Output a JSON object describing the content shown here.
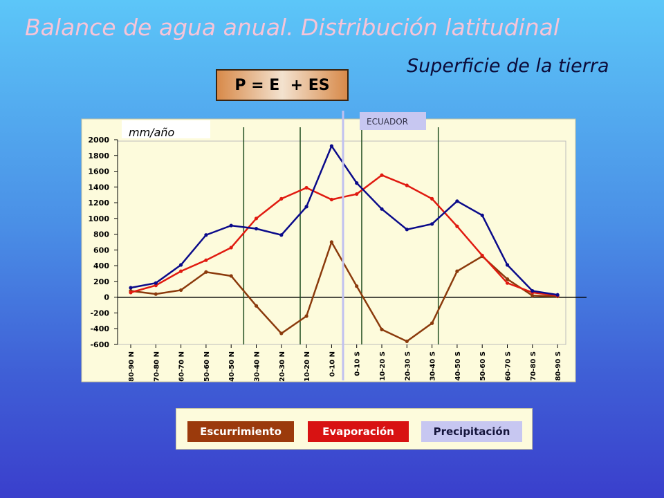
{
  "slide": {
    "title": "Balance de agua anual. Distribución latitudinal",
    "subtitle": "Superficie de la tierra",
    "formula": "P = E  + ES"
  },
  "chart_data": {
    "type": "line",
    "title": "",
    "unit_label": "mm/año",
    "equator_label": "ECUADOR",
    "categories": [
      "80-90 N",
      "70-80 N",
      "60-70 N",
      "50-60 N",
      "40-50 N",
      "30-40 N",
      "20-30 N",
      "10-20 N",
      "0-10 N",
      "0-10 S",
      "10-20 S",
      "20-30 S",
      "30-40 S",
      "40-50 S",
      "50-60 S",
      "60-70 S",
      "70-80 S",
      "80-90 S"
    ],
    "yticks": [
      2000,
      1800,
      1600,
      1400,
      1200,
      1000,
      800,
      600,
      400,
      200,
      0,
      -200,
      -400,
      -600
    ],
    "ylim": [
      -600,
      2000
    ],
    "grid": false,
    "legend_position": "bottom",
    "colors": {
      "precipitacion": "#0a0a8a",
      "evaporacion": "#e01a10",
      "escurrimiento": "#8b3a0c",
      "zone_line": "#1f4d1f",
      "equator_line": "#c0c0f0"
    },
    "series": [
      {
        "name": "Precipitación",
        "key": "precipitacion",
        "values": [
          120,
          180,
          410,
          790,
          910,
          870,
          790,
          1150,
          1920,
          1450,
          1120,
          860,
          930,
          1220,
          1040,
          410,
          80,
          30
        ]
      },
      {
        "name": "Evaporación",
        "key": "evaporacion",
        "values": [
          60,
          150,
          330,
          470,
          630,
          1000,
          1250,
          1390,
          1240,
          1310,
          1550,
          1420,
          1250,
          900,
          530,
          180,
          60,
          20
        ]
      },
      {
        "name": "Escurrimiento",
        "key": "escurrimiento",
        "values": [
          80,
          40,
          90,
          320,
          270,
          -110,
          -460,
          -240,
          700,
          140,
          -410,
          -560,
          -330,
          330,
          520,
          230,
          20,
          10
        ]
      }
    ]
  },
  "legend": {
    "escurrimiento": "Escurrimiento",
    "evaporacion": "Evaporación",
    "precipitacion": "Precipitación"
  }
}
